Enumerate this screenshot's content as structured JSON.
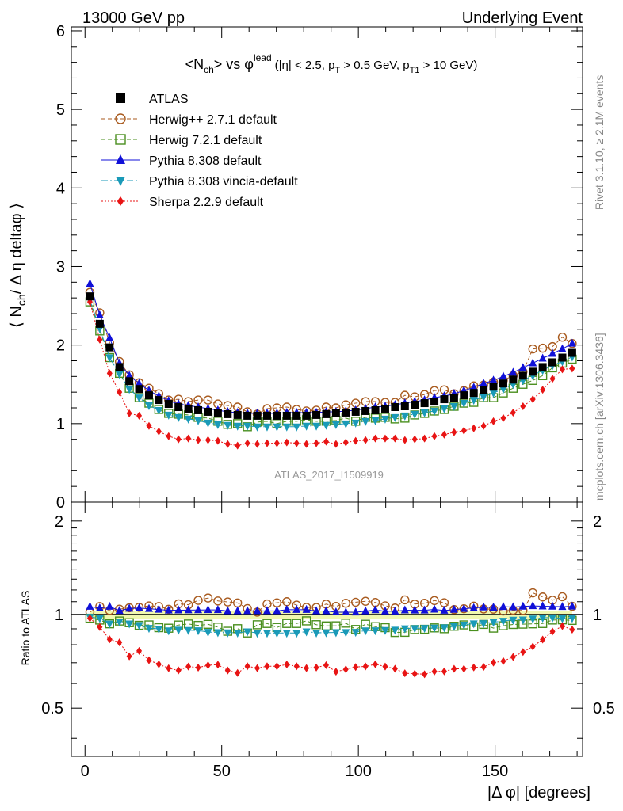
{
  "header": {
    "left": "13000 GeV pp",
    "right": "Underlying Event"
  },
  "side_labels": {
    "rivet": "Rivet 3.1.10, ≥ 2.1M events",
    "mcplots": "mcplots.cern.ch [arXiv:1306.3436]"
  },
  "watermark": "ATLAS_2017_I1509919",
  "chart_data": {
    "type": "scatter",
    "title": "<N_ch> vs φ^lead (|η| < 2.5, p_T > 0.5 GeV, p_T1 > 10 GeV)",
    "title_parts": {
      "main_a": "<N",
      "main_sub": "ch",
      "main_b": "> vs φ",
      "main_sup": "lead",
      "cond_a": "(|η| < 2.5, p",
      "cond_sub1": "T",
      "cond_b": " > 0.5 GeV, p",
      "cond_sub2": "T1",
      "cond_c": " > 10 GeV)"
    },
    "xlabel": "|Δ φ| [degrees]",
    "ylabel_parts": {
      "a": "⟨ N",
      "sub": "ch",
      "b": "/ Δ η deltaφ ⟩"
    },
    "ratio_ylabel": "Ratio to ATLAS",
    "xlim": [
      -5,
      182
    ],
    "ylim": [
      0,
      6.05
    ],
    "ratio_ylim": [
      0.35,
      2.3
    ],
    "x_ticks": [
      "0",
      "50",
      "100",
      "150"
    ],
    "y_ticks": [
      "0",
      "1",
      "2",
      "3",
      "4",
      "5",
      "6"
    ],
    "ratio_ticks": [
      "0.5",
      "1",
      "2"
    ],
    "legend_position": "top-left",
    "x": [
      1.8,
      5.4,
      9.0,
      12.6,
      16.2,
      19.8,
      23.4,
      27.0,
      30.6,
      34.2,
      37.8,
      41.4,
      45.0,
      48.6,
      52.2,
      55.8,
      59.4,
      63.0,
      66.6,
      70.2,
      73.8,
      77.4,
      81.0,
      84.6,
      88.2,
      91.8,
      95.4,
      99.0,
      102.6,
      106.2,
      109.8,
      113.4,
      117.0,
      120.6,
      124.2,
      127.8,
      131.4,
      135.0,
      138.6,
      142.2,
      145.8,
      149.4,
      153.0,
      156.6,
      160.2,
      163.8,
      167.4,
      171.0,
      174.6,
      178.2
    ],
    "series": [
      {
        "name": "ATLAS",
        "style": "data",
        "color": "#000000",
        "values": [
          2.62,
          2.27,
          1.97,
          1.72,
          1.54,
          1.44,
          1.36,
          1.3,
          1.25,
          1.21,
          1.19,
          1.17,
          1.15,
          1.13,
          1.12,
          1.11,
          1.1,
          1.1,
          1.1,
          1.1,
          1.1,
          1.1,
          1.1,
          1.11,
          1.12,
          1.13,
          1.14,
          1.15,
          1.16,
          1.17,
          1.19,
          1.21,
          1.22,
          1.24,
          1.26,
          1.28,
          1.31,
          1.33,
          1.36,
          1.39,
          1.43,
          1.47,
          1.51,
          1.56,
          1.61,
          1.66,
          1.72,
          1.78,
          1.84,
          1.9
        ]
      },
      {
        "name": "Herwig++ 2.7.1 default",
        "style": "open-circle-dashed",
        "color": "#a85a1e",
        "values": [
          2.67,
          2.41,
          2.03,
          1.79,
          1.62,
          1.52,
          1.45,
          1.38,
          1.3,
          1.31,
          1.28,
          1.3,
          1.3,
          1.25,
          1.23,
          1.21,
          1.15,
          1.12,
          1.19,
          1.2,
          1.21,
          1.18,
          1.16,
          1.17,
          1.21,
          1.2,
          1.24,
          1.26,
          1.28,
          1.28,
          1.27,
          1.27,
          1.36,
          1.34,
          1.37,
          1.42,
          1.43,
          1.38,
          1.42,
          1.48,
          1.49,
          1.53,
          1.55,
          1.61,
          1.66,
          1.95,
          1.96,
          1.98,
          2.1,
          2.02
        ]
      },
      {
        "name": "Herwig 7.2.1 default",
        "style": "open-square-dashed",
        "color": "#4a8f1e",
        "values": [
          2.55,
          2.18,
          1.84,
          1.64,
          1.45,
          1.33,
          1.26,
          1.18,
          1.13,
          1.12,
          1.11,
          1.08,
          1.07,
          1.03,
          0.99,
          1.0,
          0.96,
          1.02,
          1.03,
          1.0,
          1.03,
          1.03,
          1.05,
          1.03,
          1.03,
          1.04,
          1.07,
          1.03,
          1.08,
          1.07,
          1.08,
          1.06,
          1.07,
          1.11,
          1.13,
          1.16,
          1.18,
          1.22,
          1.26,
          1.27,
          1.33,
          1.33,
          1.39,
          1.45,
          1.5,
          1.55,
          1.61,
          1.71,
          1.77,
          1.82
        ]
      },
      {
        "name": "Pythia 8.308 default",
        "style": "filled-triangle-solid",
        "color": "#1010d8",
        "values": [
          2.78,
          2.38,
          2.09,
          1.77,
          1.61,
          1.51,
          1.42,
          1.35,
          1.29,
          1.25,
          1.23,
          1.21,
          1.19,
          1.17,
          1.15,
          1.14,
          1.13,
          1.13,
          1.13,
          1.13,
          1.14,
          1.14,
          1.14,
          1.14,
          1.15,
          1.15,
          1.16,
          1.17,
          1.19,
          1.21,
          1.22,
          1.24,
          1.26,
          1.28,
          1.3,
          1.33,
          1.35,
          1.38,
          1.42,
          1.46,
          1.51,
          1.55,
          1.6,
          1.65,
          1.71,
          1.77,
          1.83,
          1.89,
          1.95,
          2.02
        ]
      },
      {
        "name": "Pythia 8.308 vincia-default",
        "style": "filled-triangle-down-dashdot",
        "color": "#1a9ab8",
        "values": [
          2.57,
          2.21,
          1.84,
          1.63,
          1.44,
          1.33,
          1.23,
          1.17,
          1.11,
          1.08,
          1.06,
          1.04,
          1.01,
          0.99,
          0.98,
          0.97,
          0.97,
          0.96,
          0.96,
          0.96,
          0.96,
          0.96,
          0.97,
          0.97,
          0.98,
          0.99,
          1.0,
          1.01,
          1.03,
          1.04,
          1.06,
          1.08,
          1.1,
          1.12,
          1.14,
          1.16,
          1.19,
          1.22,
          1.26,
          1.3,
          1.34,
          1.39,
          1.44,
          1.5,
          1.55,
          1.61,
          1.68,
          1.74,
          1.79,
          1.85
        ]
      },
      {
        "name": "Sherpa 2.2.9 default",
        "style": "filled-diamond-dotted",
        "color": "#e81414",
        "values": [
          2.55,
          2.07,
          1.64,
          1.4,
          1.13,
          1.1,
          0.97,
          0.9,
          0.84,
          0.8,
          0.81,
          0.79,
          0.79,
          0.78,
          0.74,
          0.72,
          0.75,
          0.74,
          0.75,
          0.75,
          0.76,
          0.75,
          0.74,
          0.75,
          0.77,
          0.74,
          0.76,
          0.78,
          0.79,
          0.81,
          0.81,
          0.81,
          0.79,
          0.8,
          0.81,
          0.84,
          0.86,
          0.89,
          0.91,
          0.94,
          0.97,
          1.03,
          1.07,
          1.14,
          1.22,
          1.31,
          1.43,
          1.57,
          1.69,
          1.7
        ]
      }
    ]
  }
}
